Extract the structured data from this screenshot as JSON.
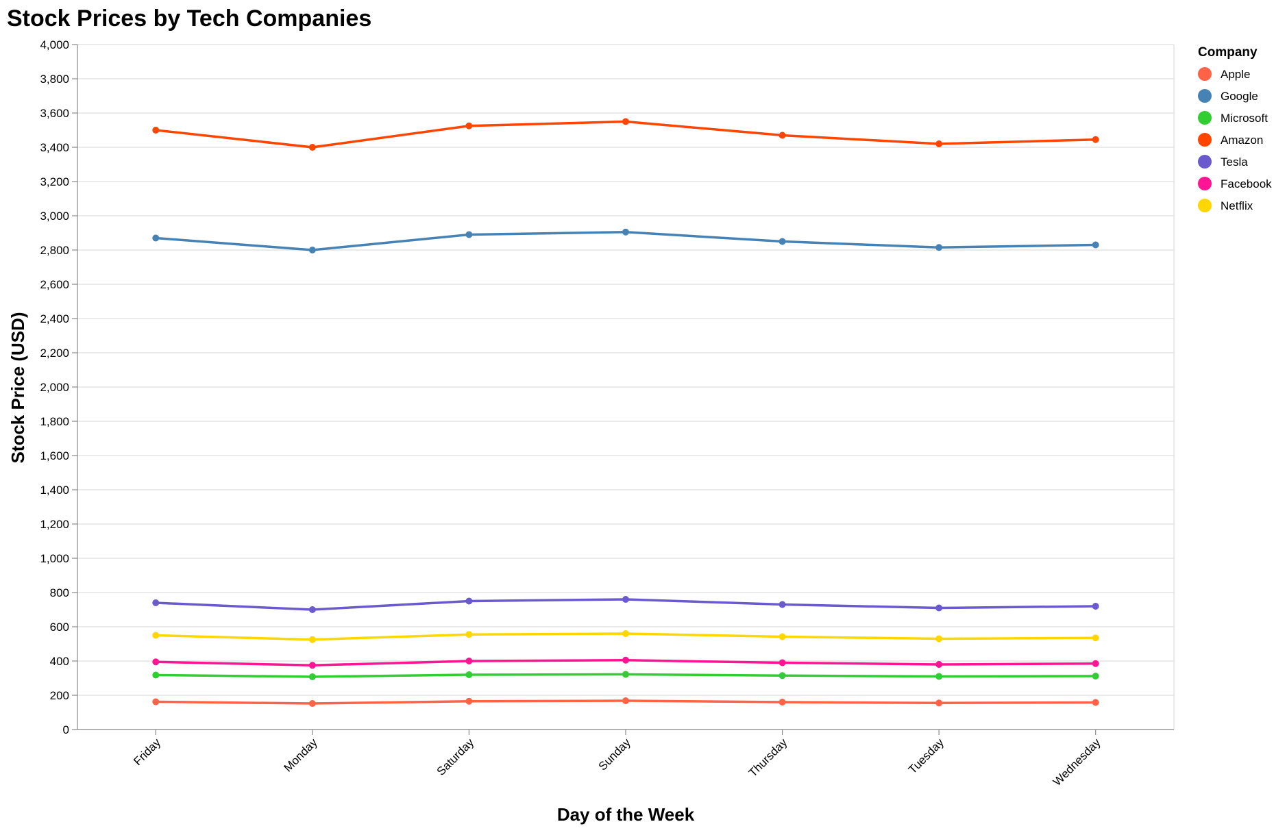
{
  "chart_data": {
    "type": "line",
    "title": "Stock Prices by Tech Companies",
    "xlabel": "Day of the Week",
    "ylabel": "Stock Price (USD)",
    "categories": [
      "Friday",
      "Monday",
      "Saturday",
      "Sunday",
      "Thursday",
      "Tuesday",
      "Wednesday"
    ],
    "ylim": [
      0,
      4000
    ],
    "yticks": [
      0,
      200,
      400,
      600,
      800,
      1000,
      1200,
      1400,
      1600,
      1800,
      2000,
      2200,
      2400,
      2600,
      2800,
      3000,
      3200,
      3400,
      3600,
      3800,
      4000
    ],
    "ytick_labels": [
      "0",
      "200",
      "400",
      "600",
      "800",
      "1,000",
      "1,200",
      "1,400",
      "1,600",
      "1,800",
      "2,000",
      "2,200",
      "2,400",
      "2,600",
      "2,800",
      "3,000",
      "3,200",
      "3,400",
      "3,600",
      "3,800",
      "4,000"
    ],
    "grid": true,
    "legend": {
      "title": "Company",
      "placement": "right"
    },
    "series": [
      {
        "name": "Apple",
        "color": "#ff6347",
        "values": [
          162,
          152,
          165,
          168,
          160,
          155,
          158
        ]
      },
      {
        "name": "Google",
        "color": "#4682b4",
        "values": [
          2870,
          2800,
          2890,
          2905,
          2850,
          2815,
          2830
        ]
      },
      {
        "name": "Microsoft",
        "color": "#32cd32",
        "values": [
          318,
          308,
          320,
          322,
          315,
          310,
          312
        ]
      },
      {
        "name": "Amazon",
        "color": "#ff4500",
        "values": [
          3500,
          3400,
          3525,
          3550,
          3470,
          3420,
          3445
        ]
      },
      {
        "name": "Tesla",
        "color": "#6a5acd",
        "values": [
          740,
          700,
          750,
          760,
          730,
          710,
          720
        ]
      },
      {
        "name": "Facebook",
        "color": "#ff1493",
        "values": [
          395,
          375,
          400,
          405,
          390,
          380,
          385
        ]
      },
      {
        "name": "Netflix",
        "color": "#ffd700",
        "values": [
          550,
          525,
          555,
          560,
          542,
          530,
          535
        ]
      }
    ]
  }
}
